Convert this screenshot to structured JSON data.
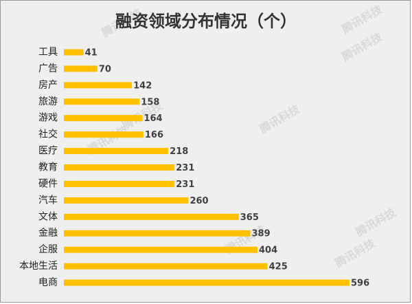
{
  "chart_data": {
    "type": "bar",
    "orientation": "horizontal",
    "title": "融资领域分布情况（个）",
    "watermark": "腾讯科技",
    "categories": [
      "工具",
      "广告",
      "房产",
      "旅游",
      "游戏",
      "社交",
      "医疗",
      "教育",
      "硬件",
      "汽车",
      "文体",
      "金融",
      "企服",
      "本地生活",
      "电商"
    ],
    "values": [
      41,
      70,
      142,
      158,
      164,
      166,
      218,
      231,
      231,
      260,
      365,
      389,
      404,
      425,
      596
    ],
    "color": "#ffc000"
  }
}
